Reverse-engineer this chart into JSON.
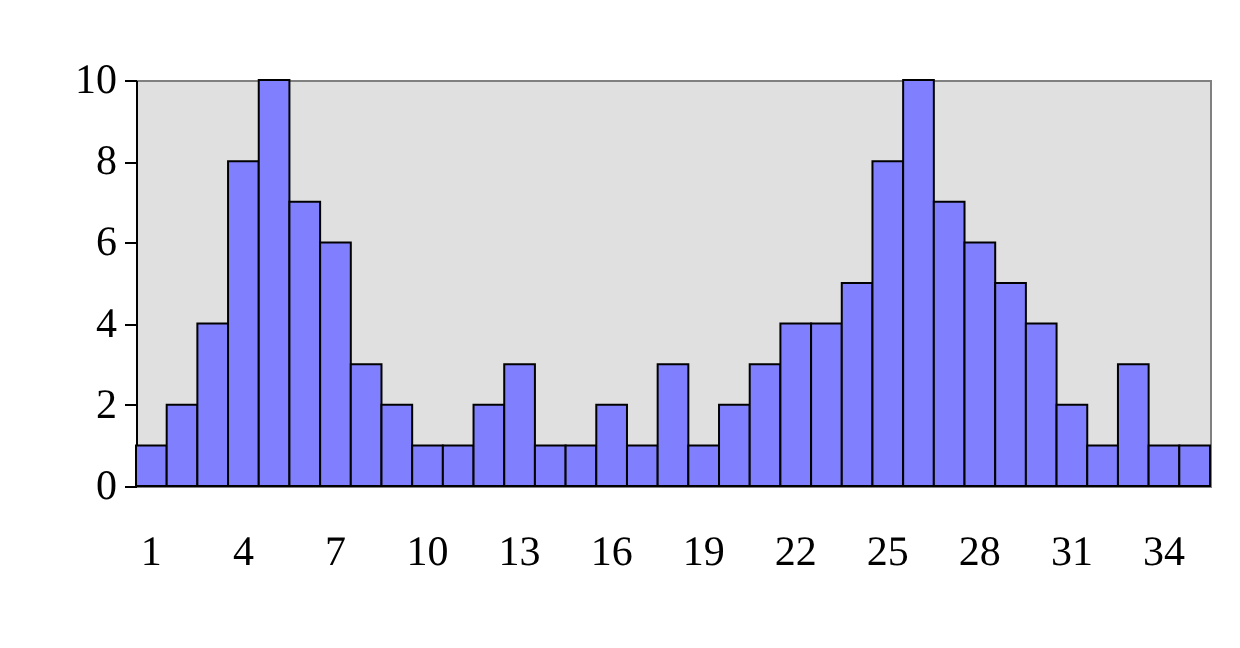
{
  "chart_data": {
    "type": "bar",
    "categories": [
      "1",
      null,
      null,
      "4",
      null,
      null,
      "7",
      null,
      null,
      "10",
      null,
      null,
      "13",
      null,
      null,
      "16",
      null,
      null,
      "19",
      null,
      null,
      "22",
      null,
      null,
      "25",
      null,
      null,
      "28",
      null,
      null,
      "31",
      null,
      null,
      "34",
      null
    ],
    "values": [
      1,
      2,
      4,
      8,
      10,
      7,
      6,
      3,
      2,
      1,
      1,
      2,
      3,
      1,
      1,
      2,
      1,
      3,
      1,
      2,
      3,
      4,
      4,
      5,
      8,
      10,
      7,
      6,
      5,
      4,
      2,
      1,
      3,
      1,
      1
    ],
    "color": "#8080ff",
    "ylim": [
      0,
      10
    ],
    "yticks": [
      0,
      2,
      4,
      6,
      8,
      10
    ],
    "grid": false
  }
}
